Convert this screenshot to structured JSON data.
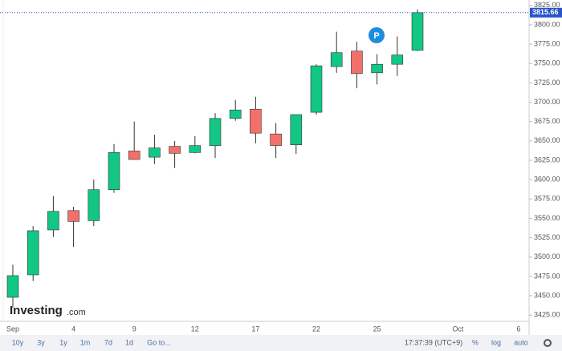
{
  "chart_data": {
    "type": "candlestick",
    "categories": [
      "Sep",
      null,
      null,
      "4",
      null,
      null,
      "9",
      null,
      null,
      "12",
      null,
      null,
      "17",
      null,
      null,
      "22",
      null,
      null,
      "25",
      null,
      null,
      null,
      "Oct",
      null,
      null,
      "6"
    ],
    "open": [
      3448,
      3477,
      3535,
      3560,
      3547,
      3587,
      3637,
      3629,
      3643,
      3635,
      3644,
      3679,
      3691,
      3659,
      3645,
      3687,
      3746,
      3766,
      3738,
      3749,
      3767,
      null,
      null,
      null,
      null,
      null
    ],
    "high": [
      3490,
      3540,
      3579,
      3565,
      3600,
      3646,
      3675,
      3658,
      3650,
      3656,
      3686,
      3703,
      3707,
      3673,
      3684,
      3749,
      3791,
      3778,
      3762,
      3785,
      3820,
      null,
      null,
      null,
      null,
      null
    ],
    "low": [
      3435,
      3469,
      3526,
      3513,
      3540,
      3583,
      3626,
      3620,
      3615,
      3634,
      3628,
      3676,
      3647,
      3628,
      3633,
      3684,
      3738,
      3718,
      3723,
      3734,
      3766,
      null,
      null,
      null,
      null,
      null
    ],
    "close": [
      3476,
      3534,
      3559,
      3546,
      3587,
      3635,
      3626,
      3641,
      3634,
      3644,
      3679,
      3690,
      3660,
      3644,
      3684,
      3747,
      3764,
      3737,
      3749,
      3761,
      3815.66,
      null,
      null,
      null,
      null,
      null
    ],
    "up_color": "#12c784",
    "down_color": "#f3706a",
    "ylim": [
      3418,
      3832
    ],
    "yticks": [
      {
        "value": 3425,
        "label": "3425.00"
      },
      {
        "value": 3450,
        "label": "3450.00"
      },
      {
        "value": 3475,
        "label": "3475.00"
      },
      {
        "value": 3500,
        "label": "3500.00"
      },
      {
        "value": 3525,
        "label": "3525.00"
      },
      {
        "value": 3550,
        "label": "3550.00"
      },
      {
        "value": 3575,
        "label": "3575.00"
      },
      {
        "value": 3600,
        "label": "3600.00"
      },
      {
        "value": 3625,
        "label": "3625.00"
      },
      {
        "value": 3650,
        "label": "3650.00"
      },
      {
        "value": 3675,
        "label": "3675.00"
      },
      {
        "value": 3700,
        "label": "3700.00"
      },
      {
        "value": 3725,
        "label": "3725.00"
      },
      {
        "value": 3750,
        "label": "3750.00"
      },
      {
        "value": 3775,
        "label": "3775.00"
      },
      {
        "value": 3800,
        "label": "3800.00"
      },
      {
        "value": 3825,
        "label": "3825.00"
      }
    ],
    "last_price": {
      "value": 3815.66,
      "label": "3815.66"
    },
    "annotation": "P"
  },
  "logo": {
    "name": "Investing",
    "suffix": ".com"
  },
  "toolbar": {
    "ranges": [
      "10y",
      "3y",
      "1y",
      "1m",
      "7d",
      "1d"
    ],
    "goto": "Go to...",
    "time": "17:37:39 (UTC+9)",
    "percent": "%",
    "log": "log",
    "auto": "auto"
  }
}
